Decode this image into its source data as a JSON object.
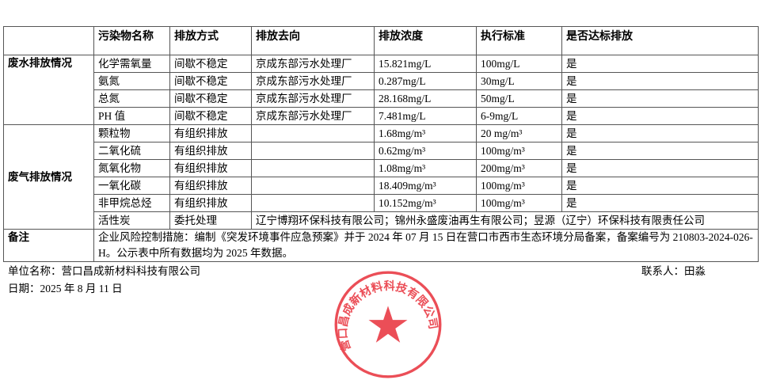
{
  "headers": [
    "",
    "污染物名称",
    "排放方式",
    "排放去向",
    "排放浓度",
    "执行标准",
    "是否达标排放"
  ],
  "water": {
    "label": "废水排放情况",
    "rows": [
      [
        "化学需氧量",
        "间歇不稳定",
        "京成东部污水处理厂",
        "15.821mg/L",
        "100mg/L",
        "是"
      ],
      [
        "氨氮",
        "间歇不稳定",
        "京成东部污水处理厂",
        "0.287mg/L",
        "30mg/L",
        "是"
      ],
      [
        "总氮",
        "间歇不稳定",
        "京成东部污水处理厂",
        "28.168mg/L",
        "50mg/L",
        "是"
      ],
      [
        "PH 值",
        "间歇不稳定",
        "京成东部污水处理厂",
        "7.481mg/L",
        "6-9mg/L",
        "是"
      ]
    ]
  },
  "gas": {
    "label": "废气排放情况",
    "rows": [
      [
        "颗粒物",
        "有组织排放",
        "",
        "1.68mg/m³",
        "20 mg/m³",
        "是"
      ],
      [
        "二氧化硫",
        "有组织排放",
        "",
        "0.62mg/m³",
        "100mg/m³",
        "是"
      ],
      [
        "氮氧化物",
        "有组织排放",
        "",
        "1.08mg/m³",
        "200mg/m³",
        "是"
      ],
      [
        "一氧化碳",
        "有组织排放",
        "",
        "18.409mg/m³",
        "100mg/m³",
        "是"
      ],
      [
        "非甲烷总烃",
        "有组织排放",
        "",
        "10.152mg/m³",
        "100mg/m³",
        "是"
      ]
    ],
    "carbon": [
      "活性炭",
      "委托处理",
      "辽宁博翔环保科技有限公司；锦州永盛废油再生有限公司；昱源（辽宁）环保科技有限责任公司"
    ]
  },
  "remark": {
    "label": "备注",
    "text": "企业风险控制措施：编制《突发环境事件应急预案》并于 2024 年 07 月 15 日在营口市西市生态环境分局备案，备案编号为 210803-2024-026-H。公示表中所有数据均为 2025 年数据。"
  },
  "footer": {
    "company": "单位名称：营口昌成新材料科技有限公司",
    "contact": "联系人：田淼",
    "date": "日期：2025 年 8 月 11 日"
  },
  "seal": {
    "text": "营口昌成新材料科技有限公司",
    "color": "#e8303a"
  }
}
